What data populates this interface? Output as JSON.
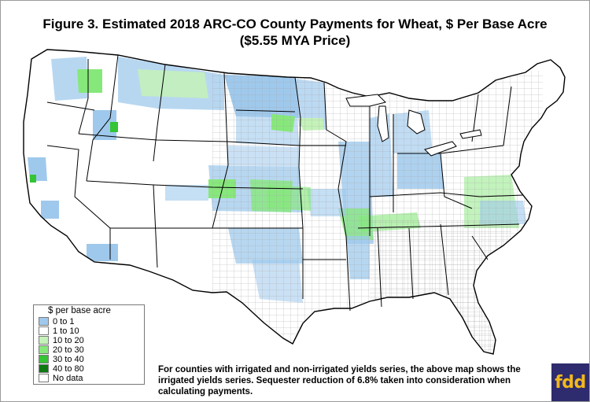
{
  "title_line1": "Figure 3.  Estimated 2018 ARC-CO County Payments for Wheat, $ Per Base Acre",
  "title_line2": "($5.55 MYA Price)",
  "legend": {
    "title": "$ per base acre",
    "items": [
      {
        "label": "0 to 1",
        "color": "#9fc9ec"
      },
      {
        "label": "1 to 10",
        "color": "#ffffff"
      },
      {
        "label": "10 to 20",
        "color": "#c4f2b8"
      },
      {
        "label": "20 to 30",
        "color": "#86e87a"
      },
      {
        "label": "30 to 40",
        "color": "#34c434"
      },
      {
        "label": "40 to 80",
        "color": "#0f7a12"
      },
      {
        "label": "No data",
        "color": "#ffffff"
      }
    ]
  },
  "footnote": "For counties with irrigated and non-irrigated yields series, the above map shows the irrigated yields series.  Sequester reduction of 6.8% taken into consideration when calculating payments.",
  "logo": {
    "text": "fdd",
    "bg": "#2e2c6e",
    "fg": "#f2b81c"
  },
  "map": {
    "outline_color": "#000000",
    "county_line_color": "#9a9a9a",
    "fill_blue": "#9fc9ec",
    "fill_light_green": "#c4f2b8",
    "fill_green": "#86e87a",
    "fill_dark_green": "#34c434"
  }
}
